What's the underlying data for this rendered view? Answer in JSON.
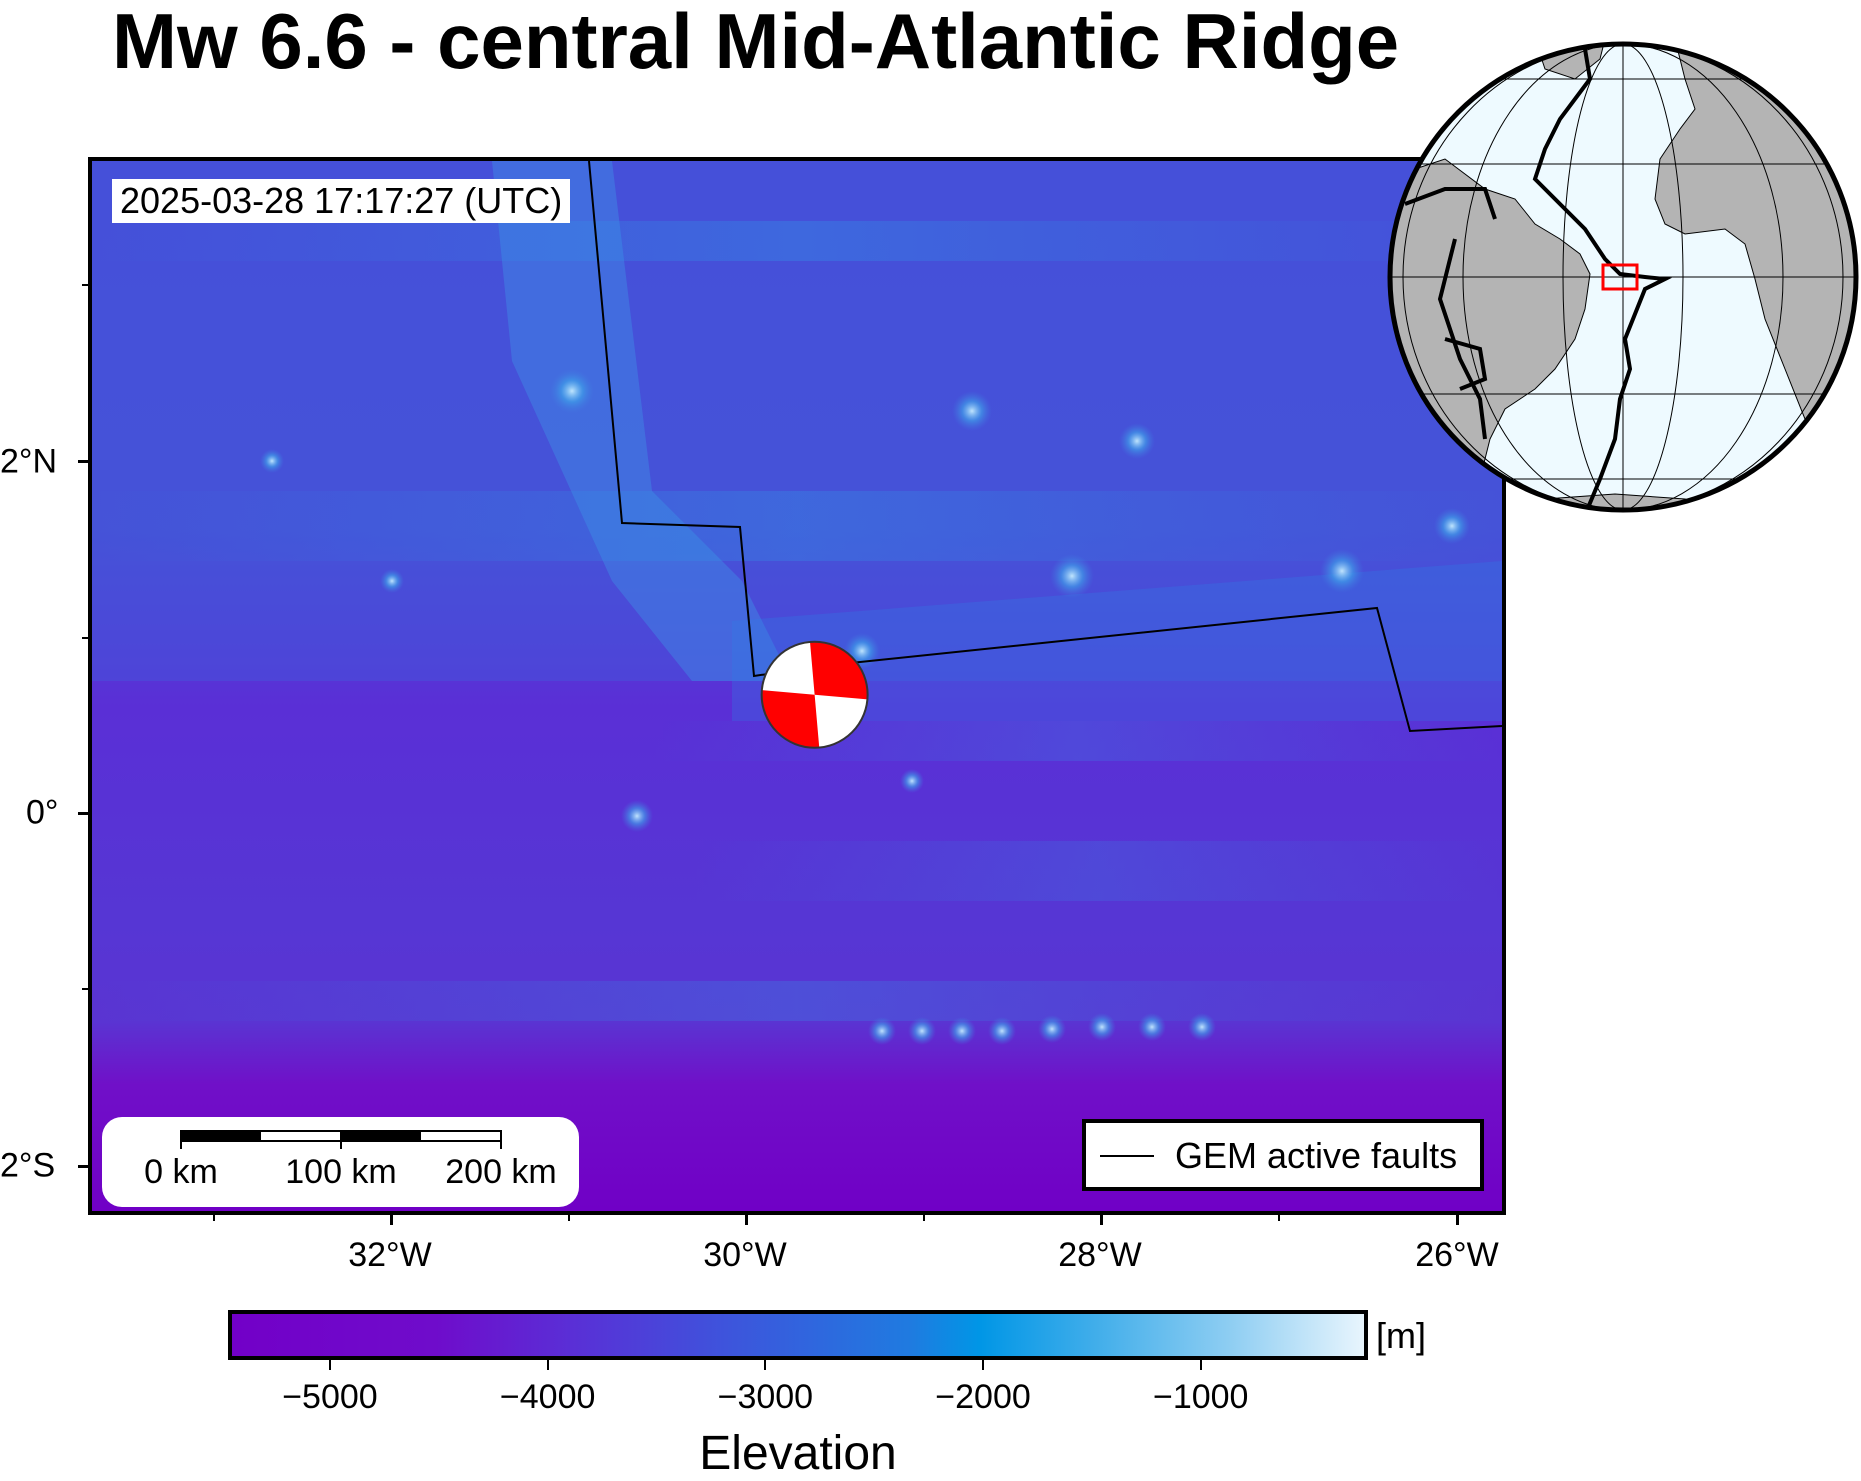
{
  "title": "Mw 6.6 - central Mid-Atlantic Ridge",
  "timestamp": "2025-03-28 17:17:27 (UTC)",
  "map": {
    "lon_range": [
      -33.8,
      -25.8
    ],
    "lat_range": [
      -2.25,
      3.75
    ],
    "lat_ticks": [
      {
        "value": 2,
        "label": "2°N"
      },
      {
        "value": 0,
        "label": "0°"
      },
      {
        "value": -2,
        "label": "2°S"
      }
    ],
    "lon_ticks": [
      {
        "value": -32,
        "label": "32°W"
      },
      {
        "value": -30,
        "label": "30°W"
      },
      {
        "value": -28,
        "label": "28°W"
      },
      {
        "value": -26,
        "label": "26°W"
      }
    ],
    "epicenter": {
      "lon": -29.7,
      "lat": 0.7,
      "magnitude": "Mw 6.6"
    },
    "beachball_colors": {
      "compression": "#ff0000",
      "tension": "#ffffff"
    }
  },
  "scalebar": {
    "labels": [
      "0 km",
      "100 km",
      "200 km"
    ]
  },
  "legend": {
    "fault_label": "GEM active faults"
  },
  "colorbar": {
    "title": "Elevation",
    "unit": "[m]",
    "range": [
      -5450,
      -250
    ],
    "ticks": [
      {
        "value": -5000,
        "label": "−5000"
      },
      {
        "value": -4000,
        "label": "−4000"
      },
      {
        "value": -3000,
        "label": "−3000"
      },
      {
        "value": -2000,
        "label": "−2000"
      },
      {
        "value": -1000,
        "label": "−1000"
      }
    ]
  },
  "inset": {
    "name": "globe-locator",
    "ocean_color": "#eefaff",
    "land_color": "#b4b4b4",
    "box_color": "#ff0000"
  }
}
